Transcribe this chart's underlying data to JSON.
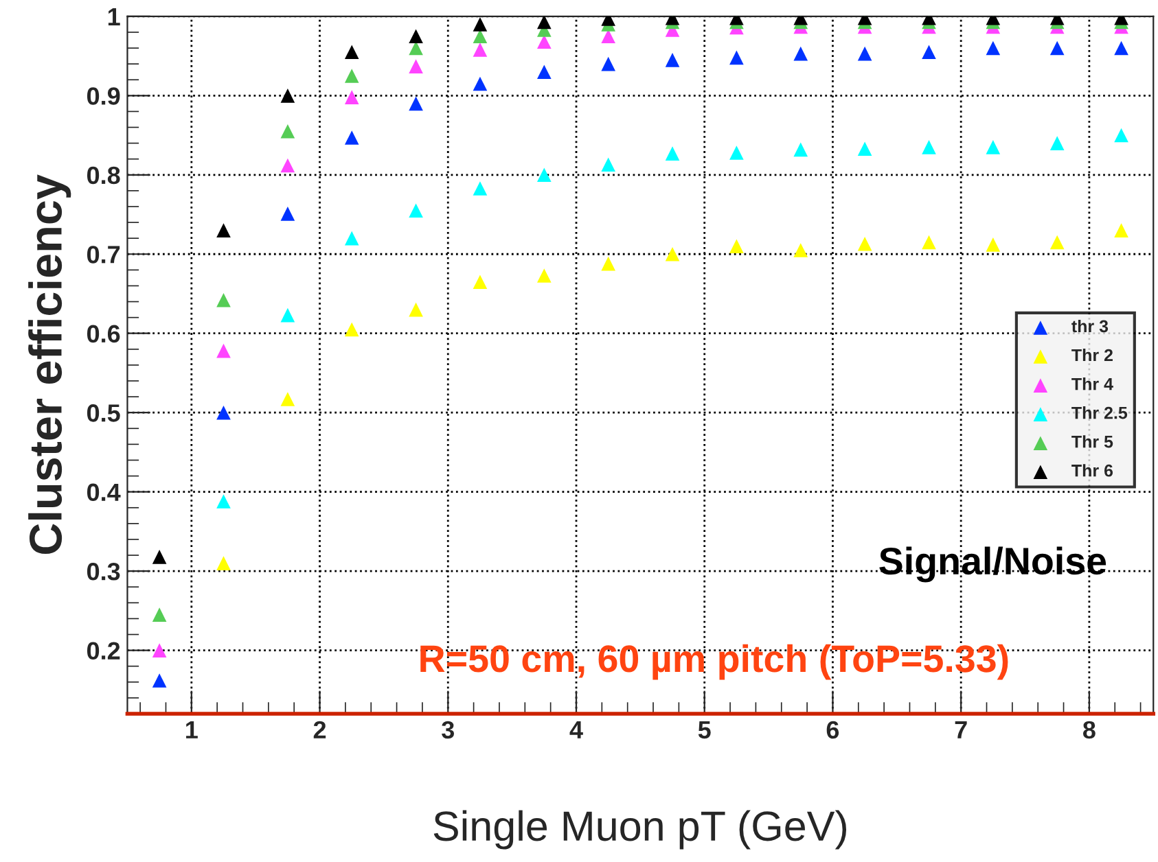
{
  "chart_data": {
    "type": "scatter",
    "xlabel": "Single Muon pT (GeV)",
    "ylabel": "Cluster efficiency",
    "x": [
      0.75,
      1.25,
      1.75,
      2.25,
      2.75,
      3.25,
      3.75,
      4.25,
      4.75,
      5.25,
      5.75,
      6.25,
      6.75,
      7.25,
      7.75,
      8.25
    ],
    "series": [
      {
        "name": "thr 3",
        "color": "#0033ff",
        "values": [
          0.162,
          0.5,
          0.751,
          0.847,
          0.89,
          0.915,
          0.93,
          0.94,
          0.945,
          0.948,
          0.953,
          0.953,
          0.955,
          0.96,
          0.96,
          0.96
        ]
      },
      {
        "name": "Thr 2",
        "color": "#ffff00",
        "values": [
          null,
          0.31,
          0.517,
          0.605,
          0.63,
          0.665,
          0.673,
          0.688,
          0.7,
          0.71,
          0.705,
          0.713,
          0.715,
          0.712,
          0.715,
          0.73
        ]
      },
      {
        "name": "Thr 4",
        "color": "#ff44ff",
        "values": [
          0.2,
          0.578,
          0.812,
          0.898,
          0.937,
          0.958,
          0.968,
          0.975,
          0.983,
          0.986,
          0.987,
          0.987,
          0.987,
          0.987,
          0.987,
          0.987
        ]
      },
      {
        "name": "Thr 2.5",
        "color": "#00ffff",
        "values": [
          null,
          0.388,
          0.623,
          0.72,
          0.755,
          0.783,
          0.8,
          0.813,
          0.827,
          0.828,
          0.832,
          0.833,
          0.835,
          0.835,
          0.84,
          0.85
        ]
      },
      {
        "name": "Thr 5",
        "color": "#55cc55",
        "values": [
          0.245,
          0.642,
          0.855,
          0.925,
          0.96,
          0.975,
          0.983,
          0.99,
          0.993,
          0.993,
          0.993,
          0.993,
          0.993,
          0.993,
          0.993,
          0.993
        ]
      },
      {
        "name": "Thr 6",
        "color": "#000000",
        "values": [
          0.318,
          0.73,
          0.9,
          0.955,
          0.975,
          0.99,
          0.993,
          0.997,
          0.998,
          0.998,
          0.998,
          0.998,
          0.998,
          0.998,
          0.998,
          0.998
        ]
      }
    ],
    "xlim": [
      0.5,
      8.5
    ],
    "ylim": [
      0.12,
      1.0
    ],
    "xticks": [
      1,
      2,
      3,
      4,
      5,
      6,
      7,
      8
    ],
    "yticks": [
      0.2,
      0.3,
      0.4,
      0.5,
      0.6,
      0.7,
      0.8,
      0.9,
      1
    ],
    "grid": true,
    "legend": "right",
    "marker": "triangle",
    "annotations": [
      "Signal/Noise",
      "R=50 cm, 60 µm pitch (ToP=5.33)"
    ]
  }
}
